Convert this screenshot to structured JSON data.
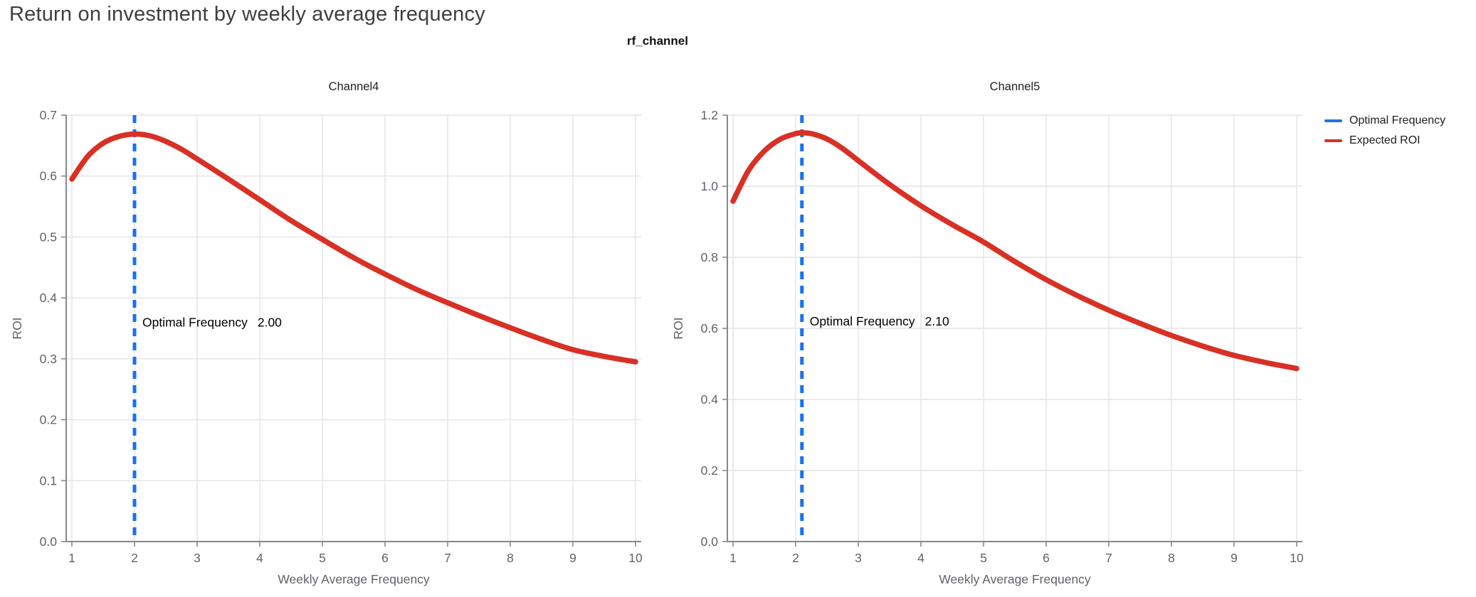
{
  "page": {
    "title": "Return on investment by weekly average frequency"
  },
  "figure": {
    "facet_title": "rf_channel",
    "colors": {
      "optimal_frequency_blue": "#1a73e8",
      "expected_roi_red": "#d93025",
      "axis_line": "#85898c",
      "gridline": "#e2e4e6",
      "tick_label": "#5f6368",
      "page_title_text": "#3c4043",
      "annotation_text": "#000000"
    },
    "legend": {
      "position": "top-right",
      "items": [
        {
          "label": "Optimal Frequency",
          "color": "#1a73e8"
        },
        {
          "label": "Expected ROI",
          "color": "#d93025"
        }
      ]
    }
  },
  "chart_data": [
    {
      "type": "line",
      "title": "Channel4",
      "xlabel": "Weekly Average Frequency",
      "ylabel": "ROI",
      "xlim": [
        1,
        10
      ],
      "ylim": [
        0,
        0.7
      ],
      "x_ticks": [
        1,
        2,
        3,
        4,
        5,
        6,
        7,
        8,
        9,
        10
      ],
      "y_ticks": [
        0,
        0.1,
        0.2,
        0.3,
        0.4,
        0.5,
        0.6,
        0.7
      ],
      "grid": true,
      "series": [
        {
          "name": "Expected ROI",
          "color": "#d93025",
          "x": [
            1,
            1.25,
            1.5,
            1.75,
            2,
            2.25,
            2.5,
            2.75,
            3,
            3.5,
            4,
            4.5,
            5,
            5.5,
            6,
            6.5,
            7,
            7.5,
            8,
            8.5,
            9,
            9.5,
            10
          ],
          "y": [
            0.595,
            0.632,
            0.654,
            0.665,
            0.669,
            0.666,
            0.657,
            0.644,
            0.628,
            0.595,
            0.561,
            0.527,
            0.496,
            0.466,
            0.439,
            0.414,
            0.392,
            0.371,
            0.351,
            0.332,
            0.315,
            0.304,
            0.295
          ]
        }
      ],
      "optimal_frequency": {
        "x": 2.0,
        "label": "Optimal Frequency",
        "value_label": "2.00",
        "color": "#1a73e8",
        "annotation_y": 0.36
      }
    },
    {
      "type": "line",
      "title": "Channel5",
      "xlabel": "Weekly Average Frequency",
      "ylabel": "ROI",
      "xlim": [
        1,
        10
      ],
      "ylim": [
        0,
        1.2
      ],
      "x_ticks": [
        1,
        2,
        3,
        4,
        5,
        6,
        7,
        8,
        9,
        10
      ],
      "y_ticks": [
        0,
        0.2,
        0.4,
        0.6,
        0.8,
        1.0,
        1.2
      ],
      "grid": true,
      "series": [
        {
          "name": "Expected ROI",
          "color": "#d93025",
          "x": [
            1,
            1.25,
            1.5,
            1.75,
            2,
            2.1,
            2.25,
            2.5,
            2.75,
            3,
            3.5,
            4,
            4.5,
            5,
            5.5,
            6,
            6.5,
            7,
            7.5,
            8,
            8.5,
            9,
            9.5,
            10
          ],
          "y": [
            0.958,
            1.045,
            1.099,
            1.132,
            1.148,
            1.15,
            1.148,
            1.133,
            1.106,
            1.072,
            1.005,
            0.945,
            0.892,
            0.843,
            0.788,
            0.737,
            0.692,
            0.651,
            0.614,
            0.58,
            0.55,
            0.524,
            0.504,
            0.487
          ]
        }
      ],
      "optimal_frequency": {
        "x": 2.1,
        "label": "Optimal Frequency",
        "value_label": "2.10",
        "color": "#1a73e8",
        "annotation_y": 0.62
      }
    }
  ]
}
